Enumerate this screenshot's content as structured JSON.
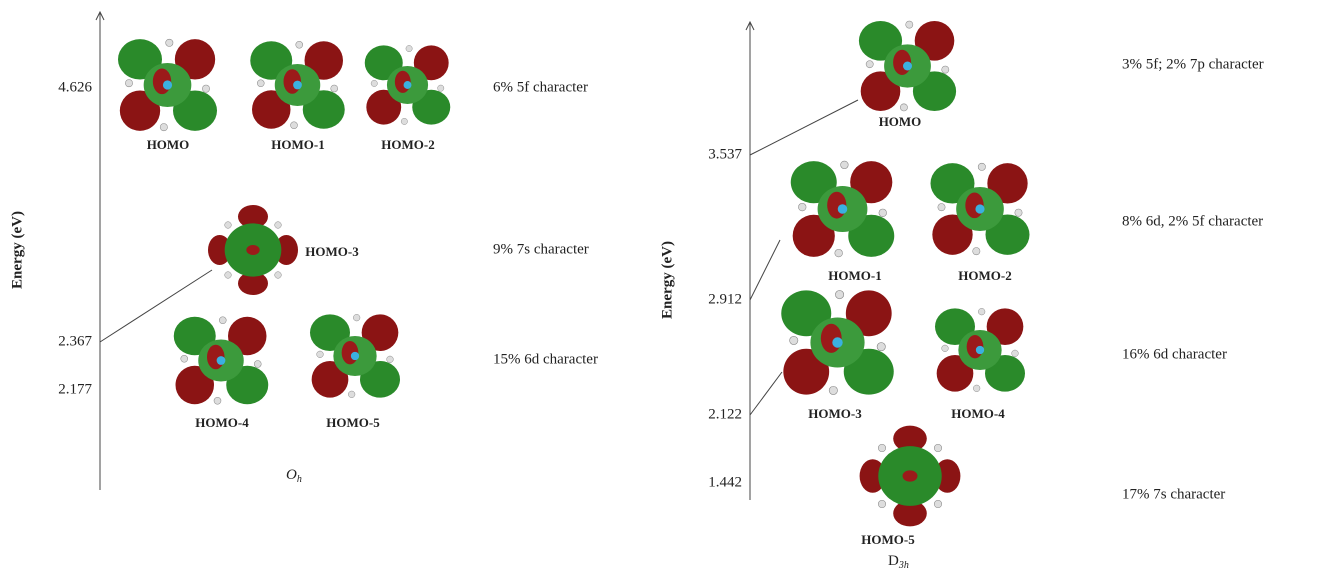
{
  "left_panel": {
    "axis_label": "Energy (eV)",
    "energy_levels": [
      "4.626",
      "2.367",
      "2.177"
    ],
    "orbitals": [
      "HOMO",
      "HOMO-1",
      "HOMO-2",
      "HOMO-3",
      "HOMO-4",
      "HOMO-5"
    ],
    "characters": [
      "6% 5f character",
      "9% 7s character",
      "15% 6d character"
    ],
    "symmetry": {
      "main": "O",
      "sub": "h"
    }
  },
  "right_panel": {
    "axis_label": "Energy (eV)",
    "energy_levels": [
      "3.537",
      "2.912",
      "2.122",
      "1.442"
    ],
    "orbitals": [
      "HOMO",
      "HOMO-1",
      "HOMO-2",
      "HOMO-3",
      "HOMO-4",
      "HOMO-5"
    ],
    "characters": [
      "3% 5f; 2% 7p character",
      "8% 6d, 2% 5f character",
      "16% 6d character",
      "17% 7s character"
    ],
    "symmetry": {
      "main": "D",
      "sub": "3h"
    }
  }
}
